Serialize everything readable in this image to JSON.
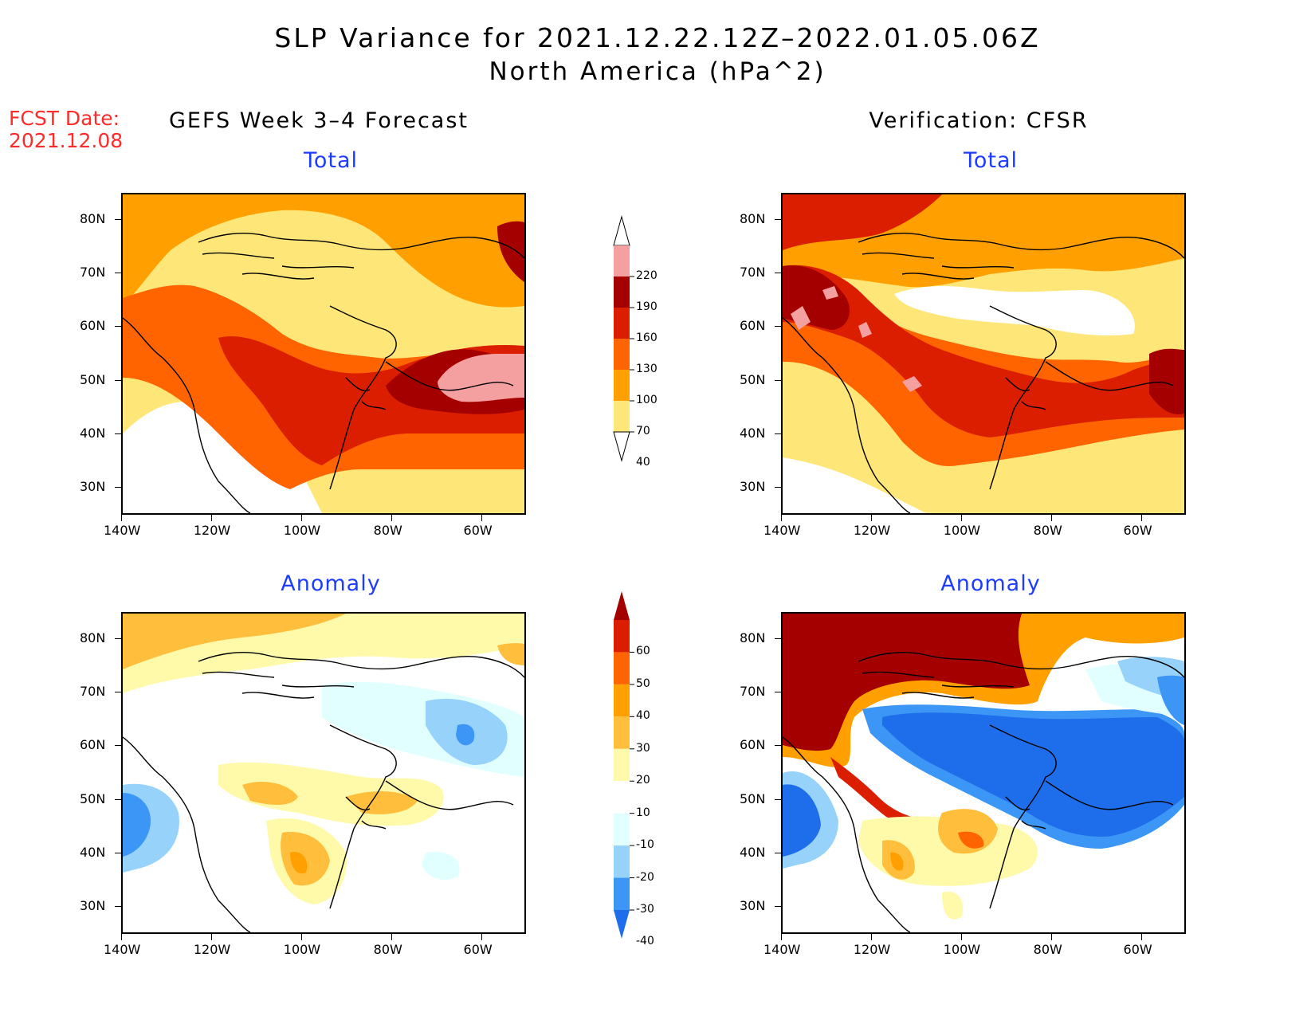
{
  "title": {
    "line1": "SLP Variance for 2021.12.22.12Z–2022.01.05.06Z",
    "line2": "North America (hPa^2)"
  },
  "forecast_date": {
    "label": "FCST Date:",
    "value": "2021.12.08"
  },
  "columns": {
    "left": "GEFS Week 3–4 Forecast",
    "right": "Verification: CFSR"
  },
  "row_titles": {
    "total": "Total",
    "anomaly": "Anomaly"
  },
  "lat_ticks": [
    "80N",
    "70N",
    "60N",
    "50N",
    "40N",
    "30N"
  ],
  "lon_ticks": [
    "140W",
    "120W",
    "100W",
    "80W",
    "60W"
  ],
  "colorbar_total": {
    "levels": [
      "220",
      "190",
      "160",
      "130",
      "100",
      "70",
      "40"
    ],
    "colors": [
      "#ffffff",
      "#f5a0a0",
      "#a50000",
      "#dc1e00",
      "#ff6400",
      "#ffa000",
      "#ffe678",
      "#ffffff"
    ]
  },
  "colorbar_anomaly": {
    "levels": [
      "60",
      "50",
      "40",
      "30",
      "20",
      "10",
      "-10",
      "-20",
      "-30",
      "-40"
    ],
    "colors": [
      "#a50000",
      "#dc1e00",
      "#ff6400",
      "#ffa000",
      "#ffbe3c",
      "#fffaaa",
      "#ffffff",
      "#e1ffff",
      "#96d2fa",
      "#3c96f5",
      "#1e6eeb"
    ]
  },
  "colors": {
    "title_red": "#ff2a2a",
    "subtitle_blue": "#1e3cff",
    "coastline": "#000000"
  },
  "chart_data": {
    "type": "heatmap",
    "panels": [
      {
        "column": "GEFS Week 3–4 Forecast",
        "row": "Total"
      },
      {
        "column": "Verification: CFSR",
        "row": "Total"
      },
      {
        "column": "GEFS Week 3–4 Forecast",
        "row": "Anomaly"
      },
      {
        "column": "Verification: CFSR",
        "row": "Anomaly"
      }
    ],
    "lat_range": [
      25,
      85
    ],
    "lon_range": [
      -140,
      -50
    ]
  }
}
